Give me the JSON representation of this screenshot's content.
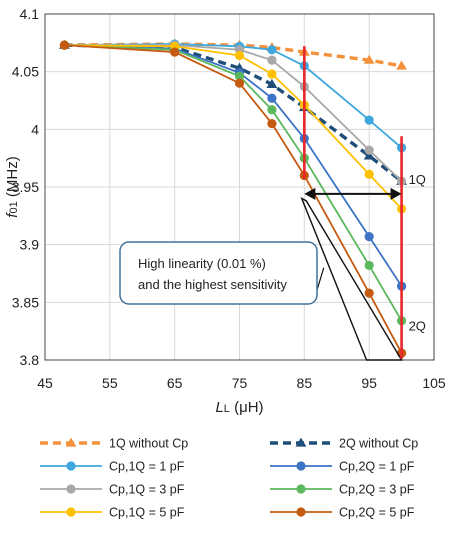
{
  "chart_data": {
    "type": "line",
    "ylabel_main": "f",
    "ylabel_sub": "01",
    "ylabel_unit": " (MHz)",
    "xlabel_main": "L",
    "xlabel_sub": "L",
    "xlabel_unit": " (μH)",
    "xlim": [
      45,
      105
    ],
    "ylim": [
      3.8,
      4.1
    ],
    "xticks": [
      45,
      55,
      65,
      75,
      85,
      95,
      105
    ],
    "yticks": [
      3.8,
      3.85,
      3.9,
      3.95,
      4.0,
      4.05,
      4.1
    ],
    "ytick_labels": [
      "3.8",
      "3.85",
      "3.9",
      "3.95",
      "4",
      "4.05",
      "4.1"
    ],
    "grid": true,
    "legend_position": "bottom",
    "series": [
      {
        "name": "1Q without Cp",
        "color": "#f4913a",
        "style": "dashed",
        "marker": "triangle",
        "x": [
          48,
          65,
          75,
          80,
          85,
          95,
          100
        ],
        "y": [
          4.073,
          4.074,
          4.073,
          4.071,
          4.067,
          4.06,
          4.055
        ]
      },
      {
        "name": "2Q without Cp",
        "color": "#1f4e79",
        "style": "dashed",
        "marker": "triangle",
        "x": [
          48,
          65,
          75,
          80,
          85,
          95,
          100
        ],
        "y": [
          4.073,
          4.071,
          4.053,
          4.039,
          4.019,
          3.977,
          3.955
        ]
      },
      {
        "name": "Cp,1Q = 1 pF",
        "color": "#3ea8de",
        "style": "solid",
        "marker": "circle",
        "x": [
          48,
          65,
          75,
          80,
          85,
          95,
          100
        ],
        "y": [
          4.073,
          4.074,
          4.072,
          4.069,
          4.055,
          4.008,
          3.984
        ]
      },
      {
        "name": "Cp,2Q = 1 pF",
        "color": "#3d73c4",
        "style": "solid",
        "marker": "circle",
        "x": [
          48,
          65,
          75,
          80,
          85,
          95,
          100
        ],
        "y": [
          4.073,
          4.07,
          4.049,
          4.027,
          3.992,
          3.907,
          3.864
        ]
      },
      {
        "name": "Cp,1Q = 3 pF",
        "color": "#a8a8a8",
        "style": "solid",
        "marker": "circle",
        "x": [
          48,
          65,
          75,
          80,
          85,
          95,
          100
        ],
        "y": [
          4.073,
          4.073,
          4.069,
          4.06,
          4.037,
          3.982,
          3.955
        ]
      },
      {
        "name": "Cp,2Q = 3 pF",
        "color": "#5cb85c",
        "style": "solid",
        "marker": "circle",
        "x": [
          48,
          65,
          75,
          80,
          85,
          95,
          100
        ],
        "y": [
          4.073,
          4.069,
          4.046,
          4.017,
          3.975,
          3.882,
          3.834
        ]
      },
      {
        "name": "Cp,1Q = 5 pF",
        "color": "#ffc000",
        "style": "solid",
        "marker": "circle",
        "x": [
          48,
          65,
          75,
          80,
          85,
          95,
          100
        ],
        "y": [
          4.073,
          4.072,
          4.064,
          4.048,
          4.021,
          3.961,
          3.931
        ]
      },
      {
        "name": "Cp,2Q = 5 pF",
        "color": "#c55a11",
        "style": "solid",
        "marker": "circle",
        "x": [
          48,
          65,
          75,
          80,
          85,
          95,
          100
        ],
        "y": [
          4.073,
          4.067,
          4.04,
          4.005,
          3.96,
          3.858,
          3.806
        ]
      }
    ],
    "annotations": {
      "box_text_line1": "High linearity (0.01 %)",
      "box_text_line2": "and the highest sensitivity",
      "label_1q": "1Q",
      "label_2q": "2Q",
      "vline_color": "#e8262b",
      "vlines": [
        {
          "x": 85,
          "y1": 3.957,
          "y2": 4.072
        },
        {
          "x": 100,
          "y1": 3.801,
          "y2": 3.994
        }
      ],
      "double_arrow": {
        "x1": 85,
        "x2": 100,
        "y": 3.944
      },
      "wedge": [
        {
          "x": 84.6,
          "y": 3.94
        },
        {
          "x": 85.3,
          "y": 3.938
        },
        {
          "x": 100,
          "y": 3.8
        },
        {
          "x": 94.6,
          "y": 3.8
        }
      ],
      "callout_anchor": {
        "x": 88,
        "y": 3.88
      }
    }
  }
}
